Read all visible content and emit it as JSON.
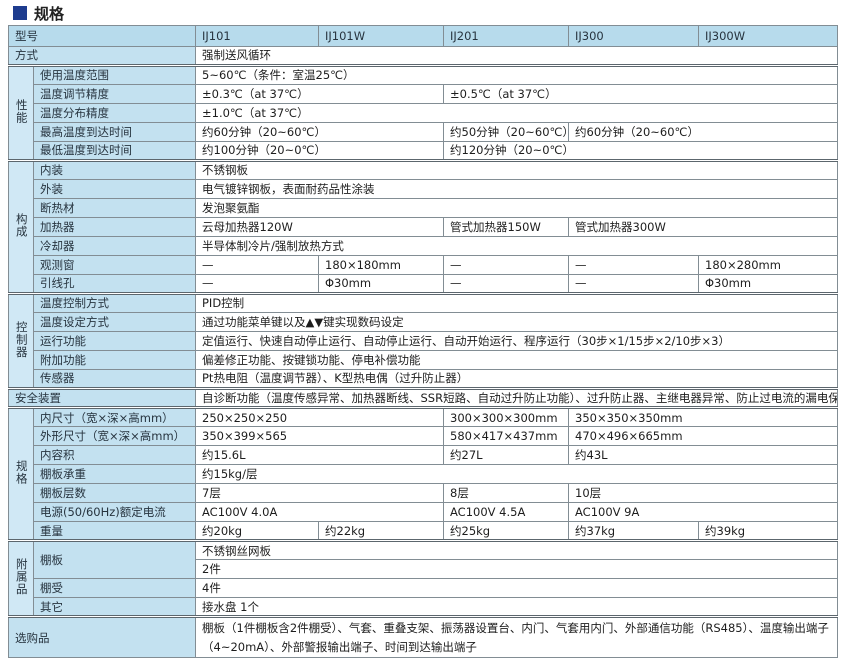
{
  "page": {
    "title": "规格",
    "colors": {
      "title_square": "#1e3c8f",
      "header_bg": "#b7dbec",
      "label_bg": "#c3e1f0",
      "group_bg": "#d0e8f5",
      "border_outer": "#4c565e",
      "border_inner": "#828d94",
      "text": "#222222"
    }
  },
  "table": {
    "header": {
      "label": "型号",
      "models": [
        "IJ101",
        "IJ101W",
        "IJ201",
        "IJ300",
        "IJ300W"
      ]
    },
    "method": {
      "label": "方式",
      "value": "强制送风循环"
    },
    "performance": {
      "group": "性能",
      "temp_range": {
        "label": "使用温度范围",
        "value": "5~60℃（条件：室温25℃）"
      },
      "temp_accuracy": {
        "label": "温度调节精度",
        "v1": "±0.3℃（at 37℃）",
        "v2": "±0.5℃（at 37℃）"
      },
      "temp_distribution": {
        "label": "温度分布精度",
        "value": "±1.0℃（at 37℃）"
      },
      "heatup_time": {
        "label": "最高温度到达时间",
        "v1": "约60分钟（20~60℃）",
        "v2": "约50分钟（20~60℃）",
        "v3": "约60分钟（20~60℃）"
      },
      "cooldown_time": {
        "label": "最低温度到达时间",
        "v1": "约100分钟（20~0℃）",
        "v2": "约120分钟（20~0℃）"
      }
    },
    "construction": {
      "group": "构成",
      "interior": {
        "label": "内装",
        "value": "不锈钢板"
      },
      "exterior": {
        "label": "外装",
        "value": "电气镀锌钢板，表面耐药品性涂装"
      },
      "insulation": {
        "label": "断热材",
        "value": "发泡聚氨酯"
      },
      "heater": {
        "label": "加热器",
        "v1": "云母加热器120W",
        "v2": "管式加热器150W",
        "v3": "管式加热器300W"
      },
      "cooler": {
        "label": "冷却器",
        "value": "半导体制冷片/强制放热方式"
      },
      "window": {
        "label": "观测窗",
        "v1": "—",
        "v2": "180×180mm",
        "v3": "—",
        "v4": "—",
        "v5": "180×280mm"
      },
      "wire_port": {
        "label": "引线孔",
        "v1": "—",
        "v2": "Φ30mm",
        "v3": "—",
        "v4": "—",
        "v5": "Φ30mm"
      }
    },
    "controller": {
      "group": "控制器",
      "control_method": {
        "label": "温度控制方式",
        "value": "PID控制"
      },
      "setting_method": {
        "label": "温度设定方式",
        "value": "通过功能菜单键以及▲▼键实现数码设定"
      },
      "run_functions": {
        "label": "运行功能",
        "value": "定值运行、快速自动停止运行、自动停止运行、自动开始运行、程序运行（30步×1/15步×2/10步×3）"
      },
      "additional_functions": {
        "label": "附加功能",
        "value": "偏差修正功能、按键锁功能、停电补偿功能"
      },
      "sensor": {
        "label": "传感器",
        "value": "Pt热电阻（温度调节器）、K型热电偶（过升防止器）"
      }
    },
    "safety": {
      "label": "安全装置",
      "value": "自诊断功能（温度传感异常、加热器断线、SSR短路、自动过升防止功能）、过升防止器、主继电器异常、防止过电流的漏电保护开关"
    },
    "specs": {
      "group": "规格",
      "inner_size": {
        "label": "内尺寸（宽×深×高mm）",
        "v1": "250×250×250",
        "v2": "300×300×300mm",
        "v3": "350×350×350mm"
      },
      "outer_size": {
        "label": "外形尺寸（宽×深×高mm）",
        "v1": "350×399×565",
        "v2": "580×417×437mm",
        "v3": "470×496×665mm"
      },
      "capacity": {
        "label": "内容积",
        "v1": "约15.6L",
        "v2": "约27L",
        "v3": "约43L"
      },
      "shelf_load": {
        "label": "棚板承重",
        "value": "约15kg/层"
      },
      "shelf_levels": {
        "label": "棚板层数",
        "v1": "7层",
        "v2": "8层",
        "v3": "10层"
      },
      "power": {
        "label": "电源(50/60Hz)额定电流",
        "v1": "AC100V 4.0A",
        "v2": "AC100V 4.5A",
        "v3": "AC100V 9A"
      },
      "weight": {
        "label": "重量",
        "v1": "约20kg",
        "v2": "约22kg",
        "v3": "约25kg",
        "v4": "约37kg",
        "v5": "约39kg"
      }
    },
    "accessories": {
      "group": "附属品",
      "shelf": {
        "label": "棚板",
        "v1": "不锈钢丝网板",
        "v2": "2件"
      },
      "shelf_support": {
        "label": "棚受",
        "value": "4件"
      },
      "other": {
        "label": "其它",
        "value": "接水盘 1个"
      }
    },
    "optional": {
      "label": "选购品",
      "value": "棚板（1件棚板含2件棚受）、气套、重叠支架、振荡器设置台、内门、气套用内门、外部通信功能（RS485）、温度输出端子（4~20mA）、外部警报输出端子、时间到达输出端子"
    }
  }
}
